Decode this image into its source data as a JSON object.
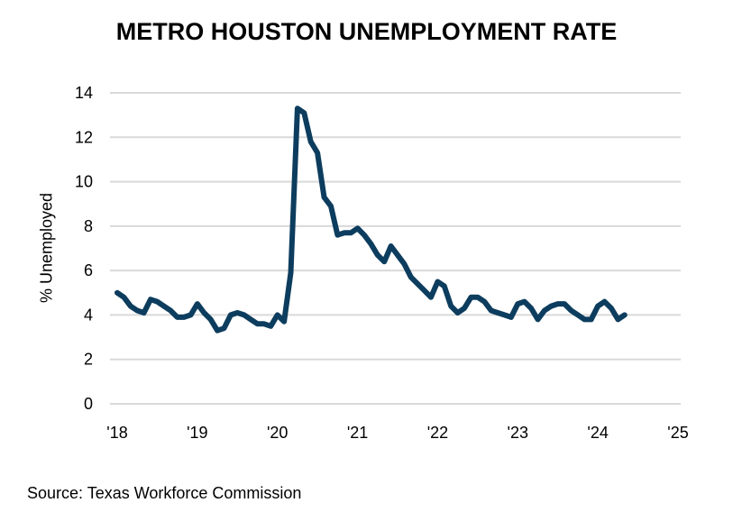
{
  "chart_data": {
    "type": "line",
    "title": "METRO HOUSTON UNEMPLOYMENT RATE",
    "xlabel": "",
    "ylabel": "% Unemployed",
    "ylim": [
      0,
      14
    ],
    "yticks": [
      "0",
      "2",
      "4",
      "6",
      "8",
      "10",
      "12",
      "14"
    ],
    "xticks": [
      "'18",
      "'19",
      "'20",
      "'21",
      "'22",
      "'23",
      "'24",
      "'25"
    ],
    "grid": true,
    "x_start": "2018-01",
    "x_frequency": "monthly",
    "series": [
      {
        "color": "#0d3d5e",
        "values": [
          5.0,
          4.8,
          4.4,
          4.2,
          4.1,
          4.7,
          4.6,
          4.4,
          4.2,
          3.9,
          3.9,
          4.0,
          4.5,
          4.1,
          3.8,
          3.3,
          3.4,
          4.0,
          4.1,
          4.0,
          3.8,
          3.6,
          3.6,
          3.5,
          4.0,
          3.7,
          5.9,
          13.3,
          13.1,
          11.8,
          11.3,
          9.3,
          8.9,
          7.6,
          7.7,
          7.7,
          7.9,
          7.6,
          7.2,
          6.7,
          6.4,
          7.1,
          6.7,
          6.3,
          5.7,
          5.4,
          5.1,
          4.8,
          5.5,
          5.3,
          4.4,
          4.1,
          4.3,
          4.8,
          4.8,
          4.6,
          4.2,
          4.1,
          4.0,
          3.9,
          4.5,
          4.6,
          4.3,
          3.8,
          4.2,
          4.4,
          4.5,
          4.5,
          4.2,
          4.0,
          3.8,
          3.8,
          4.4,
          4.6,
          4.3,
          3.8,
          4.0
        ]
      }
    ],
    "source": "Source: Texas Workforce Commission"
  }
}
